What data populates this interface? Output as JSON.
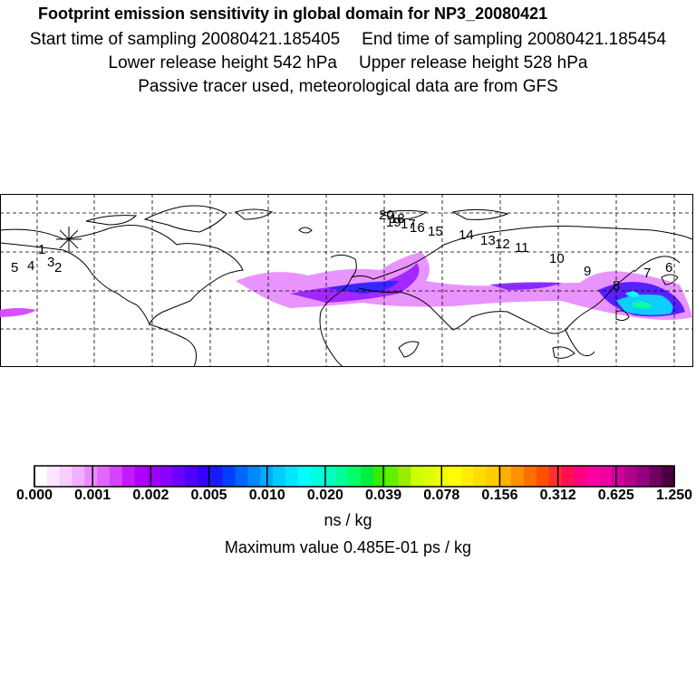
{
  "title": {
    "main": "Footprint emission sensitivity in global domain for NP3_20080421",
    "start": "Start time of sampling 20080421.185405",
    "end": "End time of sampling 20080421.185454",
    "lower": "Lower release height  542 hPa",
    "upper": "Upper release height  528 hPa",
    "note": "Passive tracer used, meteorological data are from GFS"
  },
  "trajectory_labels": [
    "1",
    "2",
    "3",
    "4",
    "5",
    "6",
    "7",
    "8",
    "9",
    "10",
    "11",
    "12",
    "13",
    "14",
    "15",
    "16",
    "17",
    "18",
    "19",
    "20"
  ],
  "colorbar": {
    "tick_labels": [
      "0.000",
      "0.001",
      "0.002",
      "0.005",
      "0.010",
      "0.020",
      "0.039",
      "0.078",
      "0.156",
      "0.312",
      "0.625",
      "1.250"
    ],
    "colors": [
      "#ffffff",
      "#fbe6ff",
      "#f7ccff",
      "#f0b0ff",
      "#e98bff",
      "#e068ff",
      "#d445ff",
      "#c21aff",
      "#b000ff",
      "#9d00ff",
      "#8a00ff",
      "#6a00ff",
      "#4f00ff",
      "#3300ff",
      "#1a1aff",
      "#0040ff",
      "#0066ff",
      "#0088ff",
      "#00aaff",
      "#00ccff",
      "#00e6ff",
      "#00ffff",
      "#00ffe0",
      "#00ffc0",
      "#00ff99",
      "#00ff66",
      "#00ee40",
      "#33ee00",
      "#66ee00",
      "#99ee00",
      "#ccff00",
      "#ddff00",
      "#eeff00",
      "#ffff00",
      "#ffee00",
      "#ffdd00",
      "#ffcc00",
      "#ffb000",
      "#ff9000",
      "#ff7000",
      "#ff5000",
      "#ff3030",
      "#ff1050",
      "#ff0080",
      "#ff00a0",
      "#ee00a0",
      "#d000a0",
      "#b00090",
      "#900080",
      "#700060",
      "#4a0040"
    ],
    "units": "ns / kg",
    "max_value": "Maximum value  0.485E-01 ps / kg"
  }
}
